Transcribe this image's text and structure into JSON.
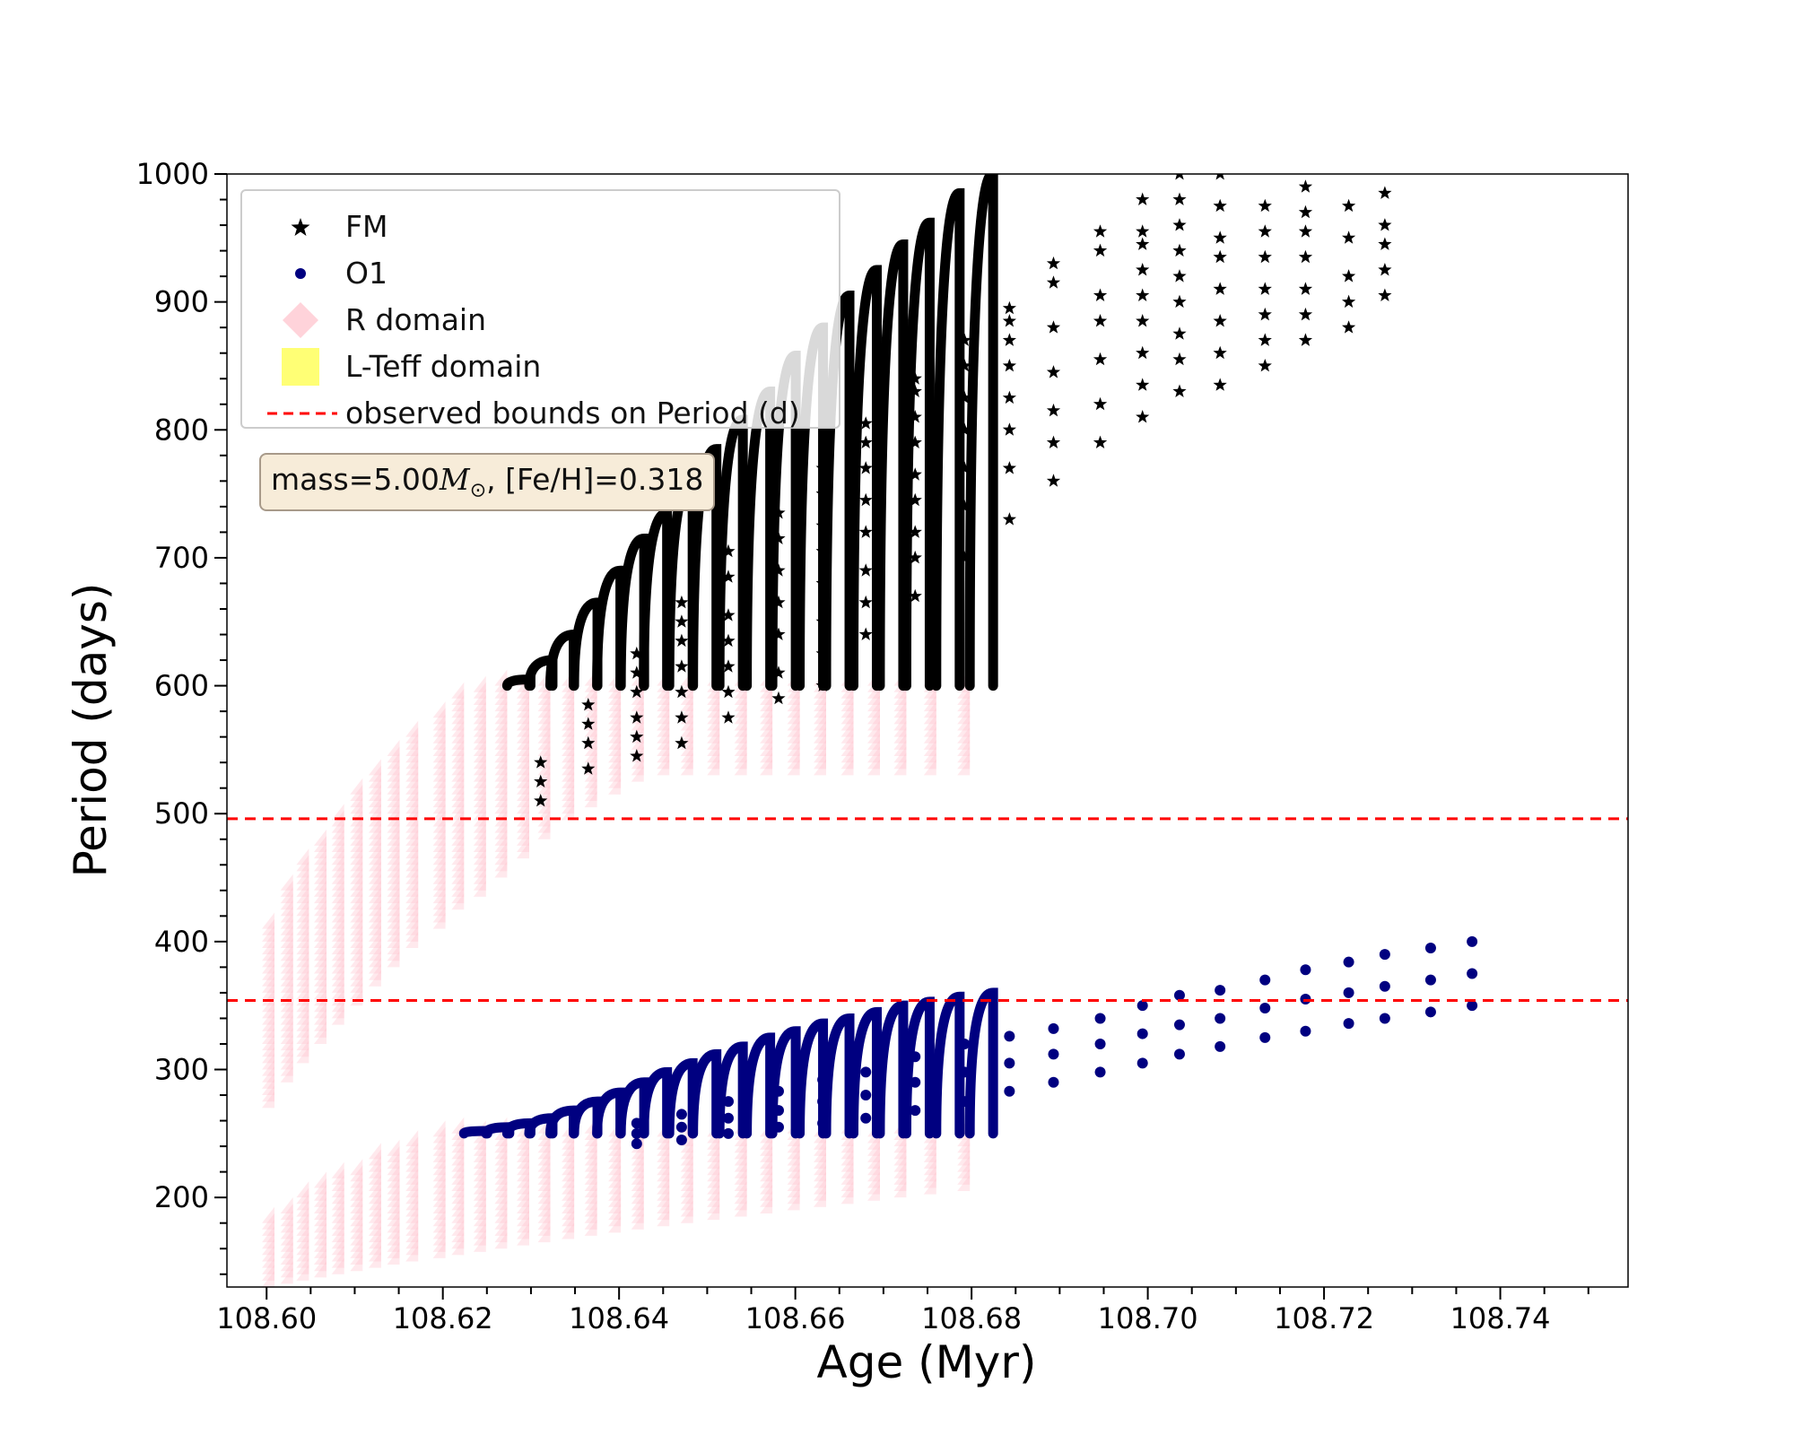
{
  "chart_data": {
    "type": "scatter",
    "xlabel": "Age (Myr)",
    "ylabel": "Period (days)",
    "xlim": [
      108.5955,
      108.7545
    ],
    "ylim": [
      130,
      1000
    ],
    "xticks": [
      108.6,
      108.62,
      108.64,
      108.66,
      108.68,
      108.7,
      108.72,
      108.74
    ],
    "xtick_labels": [
      "108.60",
      "108.62",
      "108.64",
      "108.66",
      "108.68",
      "108.70",
      "108.72",
      "108.74"
    ],
    "yticks": [
      200,
      300,
      400,
      500,
      600,
      700,
      800,
      900,
      1000
    ],
    "ytick_labels": [
      "200",
      "300",
      "400",
      "500",
      "600",
      "700",
      "800",
      "900",
      "1000"
    ],
    "legend": [
      {
        "label": "FM",
        "marker": "star",
        "color": "#000000"
      },
      {
        "label": "O1",
        "marker": "circle",
        "color": "#000080"
      },
      {
        "label": "R domain",
        "marker": "diamond",
        "color": "#ffc0cb"
      },
      {
        "label": "L-Teff domain",
        "marker": "square",
        "color": "#ffff66"
      },
      {
        "label": "observed bounds on Period (d)",
        "marker": "dashed-line",
        "color": "#ff0000"
      }
    ],
    "annotation": {
      "prefix": "mass=5.00",
      "mass_symbol": "M",
      "sun_symbol": "⊙",
      "suffix": ", [Fe/H]=0.318"
    },
    "observed_bounds": [
      354,
      496
    ],
    "pulse_ages": [
      108.6009,
      108.603,
      108.6048,
      108.6068,
      108.6088,
      108.6109,
      108.613,
      108.6151,
      108.6172,
      108.6203,
      108.6224,
      108.6249,
      108.6273,
      108.6298,
      108.6322,
      108.6349,
      108.6375,
      108.6402,
      108.6428,
      108.6457,
      108.6484,
      108.6514,
      108.6545,
      108.6574,
      108.6605,
      108.6635,
      108.6666,
      108.6696,
      108.6726,
      108.676,
      108.6798
    ],
    "fm_envelope": {
      "start": [
        340,
        360,
        375,
        390,
        405,
        420,
        435,
        450,
        465,
        480,
        495,
        505,
        520,
        535,
        550,
        565,
        575,
        585,
        595,
        600,
        600,
        600,
        600,
        600,
        600,
        600,
        600,
        600,
        600,
        600,
        600
      ],
      "end": [
        410,
        440,
        460,
        475,
        495,
        515,
        530,
        545,
        560,
        575,
        590,
        595,
        605,
        620,
        640,
        665,
        690,
        715,
        735,
        760,
        785,
        808,
        830,
        858,
        880,
        905,
        925,
        945,
        962,
        985,
        1000
      ]
    },
    "o1_envelope": {
      "start": [
        140,
        150,
        160,
        165,
        175,
        180,
        185,
        190,
        195,
        200,
        205,
        210,
        215,
        220,
        225,
        230,
        235,
        240,
        245,
        248,
        250,
        250,
        250,
        250,
        250,
        250,
        250,
        250,
        250,
        250,
        250
      ],
      "end": [
        180,
        192,
        200,
        208,
        215,
        222,
        230,
        236,
        242,
        248,
        252,
        255,
        258,
        262,
        268,
        275,
        282,
        290,
        298,
        305,
        312,
        318,
        325,
        330,
        336,
        340,
        345,
        350,
        353,
        357,
        360
      ]
    },
    "r_domain_fm_range": [
      270,
      600
    ],
    "r_domain_o1_range": [
      130,
      250
    ],
    "fm_star_towers": [
      {
        "age": 108.6311,
        "values": [
          510,
          525,
          540
        ]
      },
      {
        "age": 108.6365,
        "values": [
          535,
          555,
          570,
          585
        ]
      },
      {
        "age": 108.642,
        "values": [
          545,
          560,
          575,
          595,
          610,
          625
        ]
      },
      {
        "age": 108.6471,
        "values": [
          555,
          575,
          595,
          615,
          635,
          650,
          665
        ]
      },
      {
        "age": 108.6524,
        "values": [
          575,
          595,
          615,
          635,
          655,
          685,
          705
        ]
      },
      {
        "age": 108.6581,
        "values": [
          590,
          610,
          640,
          665,
          690,
          715,
          735
        ]
      },
      {
        "age": 108.6631,
        "values": [
          600,
          625,
          650,
          680,
          705,
          725,
          750,
          770
        ]
      },
      {
        "age": 108.668,
        "values": [
          640,
          665,
          690,
          720,
          745,
          770,
          790,
          805
        ]
      },
      {
        "age": 108.6736,
        "values": [
          670,
          700,
          720,
          745,
          765,
          790,
          810,
          830,
          840
        ]
      },
      {
        "age": 108.6792,
        "values": [
          700,
          740,
          770,
          800,
          825,
          850,
          870
        ]
      },
      {
        "age": 108.6843,
        "values": [
          730,
          770,
          800,
          825,
          850,
          870,
          885,
          895
        ]
      },
      {
        "age": 108.6893,
        "values": [
          760,
          790,
          815,
          845,
          880,
          915,
          930
        ]
      },
      {
        "age": 108.6946,
        "values": [
          790,
          820,
          855,
          885,
          905,
          940,
          955
        ]
      },
      {
        "age": 108.6994,
        "values": [
          810,
          835,
          860,
          885,
          905,
          925,
          945,
          955,
          980
        ]
      },
      {
        "age": 108.7036,
        "values": [
          830,
          855,
          875,
          900,
          920,
          940,
          960,
          980,
          1000
        ]
      },
      {
        "age": 108.7082,
        "values": [
          835,
          860,
          885,
          910,
          935,
          950,
          975,
          1000
        ]
      },
      {
        "age": 108.7133,
        "values": [
          850,
          870,
          890,
          910,
          935,
          955,
          975
        ]
      },
      {
        "age": 108.7179,
        "values": [
          870,
          890,
          910,
          935,
          955,
          970,
          990
        ]
      },
      {
        "age": 108.7228,
        "values": [
          880,
          900,
          920,
          950,
          975
        ]
      },
      {
        "age": 108.7269,
        "values": [
          905,
          925,
          945,
          960,
          985
        ]
      }
    ],
    "o1_dot_towers": [
      {
        "age": 108.642,
        "values": [
          242,
          250,
          258
        ]
      },
      {
        "age": 108.6471,
        "values": [
          245,
          255,
          265
        ]
      },
      {
        "age": 108.6524,
        "values": [
          250,
          262,
          275
        ]
      },
      {
        "age": 108.6581,
        "values": [
          255,
          268,
          283
        ]
      },
      {
        "age": 108.6631,
        "values": [
          258,
          275,
          292
        ]
      },
      {
        "age": 108.668,
        "values": [
          262,
          280,
          298
        ]
      },
      {
        "age": 108.6736,
        "values": [
          268,
          290,
          310
        ]
      },
      {
        "age": 108.6792,
        "values": [
          275,
          298,
          320
        ]
      },
      {
        "age": 108.6843,
        "values": [
          283,
          305,
          326
        ]
      },
      {
        "age": 108.6893,
        "values": [
          290,
          312,
          332
        ]
      },
      {
        "age": 108.6946,
        "values": [
          298,
          320,
          340
        ]
      },
      {
        "age": 108.6994,
        "values": [
          305,
          328,
          350
        ]
      },
      {
        "age": 108.7036,
        "values": [
          312,
          335,
          358
        ]
      },
      {
        "age": 108.7082,
        "values": [
          318,
          340,
          362
        ]
      },
      {
        "age": 108.7133,
        "values": [
          325,
          348,
          370
        ]
      },
      {
        "age": 108.7179,
        "values": [
          330,
          355,
          378
        ]
      },
      {
        "age": 108.7228,
        "values": [
          336,
          360,
          384
        ]
      },
      {
        "age": 108.7269,
        "values": [
          340,
          365,
          390
        ]
      },
      {
        "age": 108.7321,
        "values": [
          345,
          370,
          395
        ]
      },
      {
        "age": 108.7368,
        "values": [
          350,
          375,
          400
        ]
      }
    ]
  }
}
